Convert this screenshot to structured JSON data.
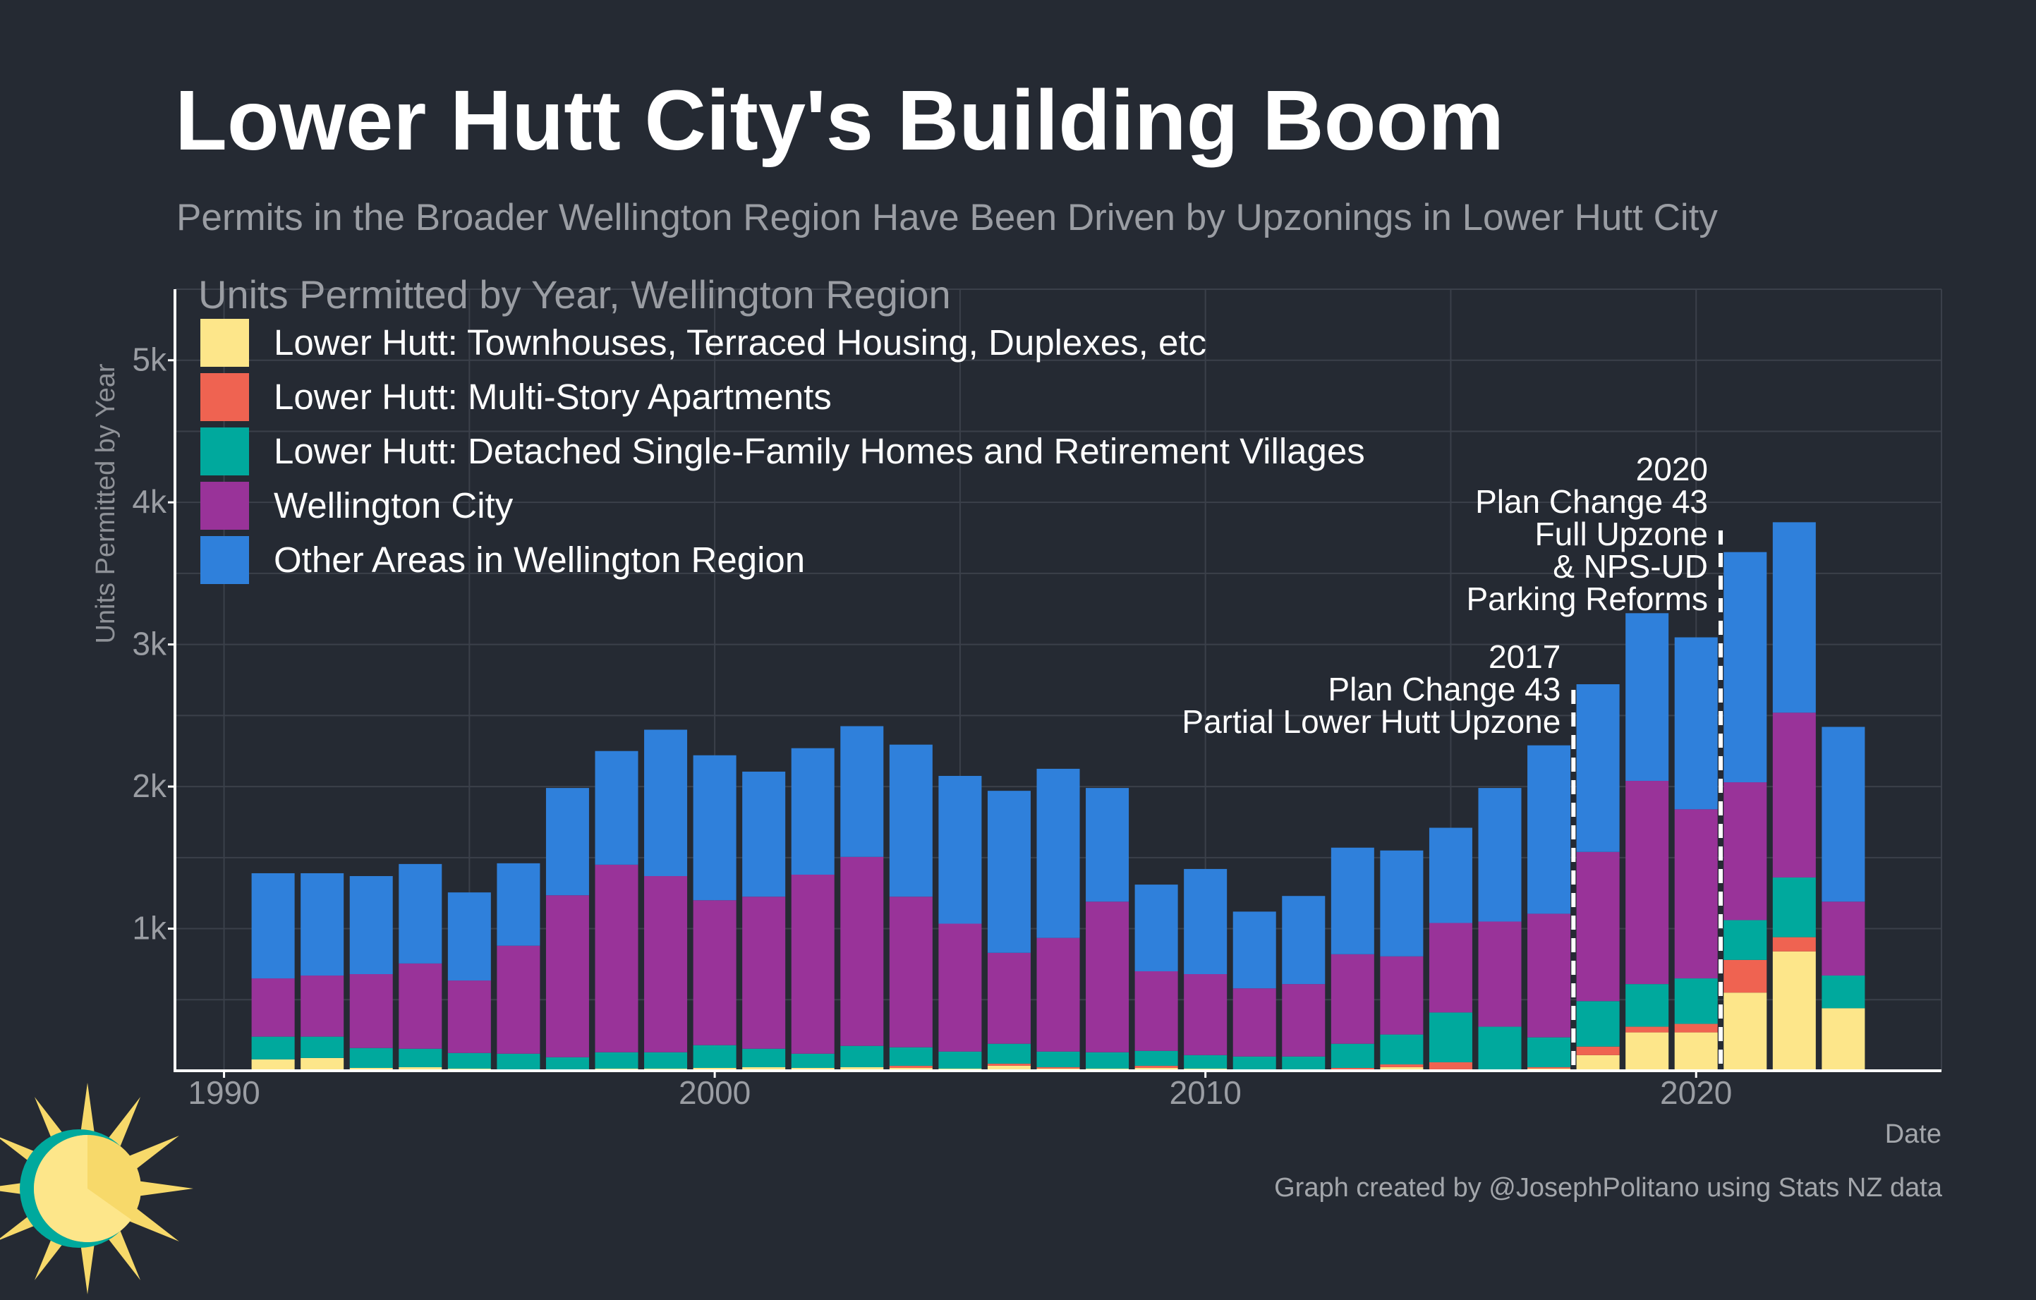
{
  "header": {
    "title": "Lower Hutt City's Building Boom",
    "subtitle": "Permits in the Broader Wellington Region Have Been Driven by Upzonings in Lower Hutt City"
  },
  "footer": {
    "credit": "Graph created by @JosephPolitano using Stats NZ data"
  },
  "chart_data": {
    "type": "bar",
    "stacked": true,
    "ylabel": "Units Permitted by Year",
    "xlabel": "Date",
    "ylim": [
      0,
      5500
    ],
    "xlim": [
      1989,
      2025
    ],
    "yticks": [
      {
        "value": 1000,
        "label": "1k"
      },
      {
        "value": 2000,
        "label": "2k"
      },
      {
        "value": 3000,
        "label": "3k"
      },
      {
        "value": 4000,
        "label": "4k"
      },
      {
        "value": 5000,
        "label": "5k"
      }
    ],
    "xticks": [
      {
        "value": 1990,
        "label": "1990"
      },
      {
        "value": 2000,
        "label": "2000"
      },
      {
        "value": 2010,
        "label": "2010"
      },
      {
        "value": 2020,
        "label": "2020"
      }
    ],
    "grid": true,
    "legend": {
      "title": "Units Permitted by Year, Wellington Region",
      "position": "top-left"
    },
    "years": [
      1991,
      1992,
      1993,
      1994,
      1995,
      1996,
      1997,
      1998,
      1999,
      2000,
      2001,
      2002,
      2003,
      2004,
      2005,
      2006,
      2007,
      2008,
      2009,
      2010,
      2011,
      2012,
      2013,
      2014,
      2015,
      2016,
      2017,
      2018,
      2019,
      2020,
      2021,
      2022,
      2023
    ],
    "series": [
      {
        "name": "Lower Hutt: Townhouses, Terraced Housing, Duplexes, etc",
        "color": "#fde68a",
        "values": [
          80,
          90,
          20,
          25,
          15,
          10,
          10,
          15,
          15,
          20,
          25,
          20,
          25,
          20,
          15,
          35,
          15,
          15,
          20,
          15,
          10,
          10,
          10,
          25,
          10,
          10,
          15,
          110,
          270,
          270,
          550,
          840,
          440
        ]
      },
      {
        "name": "Lower Hutt: Multi-Story Apartments",
        "color": "#ef6351",
        "values": [
          0,
          0,
          0,
          0,
          0,
          0,
          0,
          0,
          0,
          0,
          0,
          0,
          0,
          15,
          0,
          15,
          10,
          0,
          15,
          0,
          0,
          0,
          10,
          20,
          50,
          0,
          10,
          60,
          40,
          60,
          230,
          100,
          0
        ]
      },
      {
        "name": "Lower Hutt: Detached Single-Family Homes and Retirement Villages",
        "color": "#00a99d",
        "values": [
          160,
          150,
          140,
          130,
          110,
          110,
          85,
          115,
          115,
          160,
          130,
          100,
          150,
          130,
          120,
          140,
          110,
          115,
          105,
          95,
          90,
          90,
          170,
          210,
          350,
          300,
          210,
          320,
          300,
          320,
          280,
          420,
          230
        ]
      },
      {
        "name": "Wellington City",
        "color": "#993399",
        "values": [
          410,
          430,
          520,
          600,
          510,
          760,
          1140,
          1320,
          1240,
          1020,
          1070,
          1260,
          1330,
          1060,
          900,
          640,
          800,
          1060,
          560,
          570,
          480,
          510,
          630,
          550,
          630,
          740,
          870,
          1050,
          1430,
          1190,
          970,
          1160,
          520
        ]
      },
      {
        "name": "Other Areas in Wellington Region",
        "color": "#2f80db",
        "values": [
          740,
          720,
          690,
          700,
          620,
          580,
          755,
          800,
          1030,
          1020,
          880,
          890,
          920,
          1070,
          1040,
          1140,
          1190,
          800,
          610,
          740,
          540,
          620,
          750,
          745,
          670,
          940,
          1185,
          1180,
          1180,
          1210,
          1620,
          1340,
          1230
        ]
      }
    ],
    "annotations": [
      {
        "year": 2017.5,
        "lines": [
          "2017",
          "Plan Change 43",
          "Partial Lower Hutt Upzone"
        ]
      },
      {
        "year": 2020.5,
        "lines": [
          "2020",
          "Plan Change 43",
          "Full Upzone",
          "& NPS-UD",
          "Parking Reforms"
        ]
      }
    ]
  },
  "logo": {
    "icon": "sun-logo-icon"
  }
}
